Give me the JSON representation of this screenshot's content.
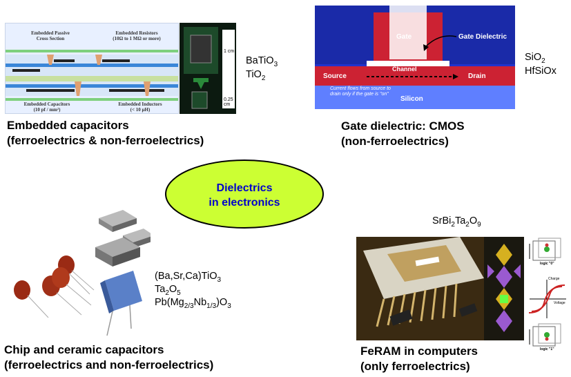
{
  "center": {
    "line1": "Dielectrics",
    "line2": "in electronics"
  },
  "embedded": {
    "caption1": "Embedded capacitors",
    "caption2": "(ferroelectrics & non-ferroelectrics)",
    "formula1_main": "BaTiO",
    "formula1_sub": "3",
    "formula2_main": "TiO",
    "formula2_sub": "2",
    "img_title1": "Embedded Passive",
    "img_title2": "Cross Section",
    "img_resistors1": "Embedded Resistors",
    "img_resistors2": "(10Ω to 1 MΩ or more)",
    "img_capacitors1": "Embedded Capacitors",
    "img_capacitors2": "(10 pf / mm²)",
    "img_inductors1": "Embedded Inductors",
    "img_inductors2": "(< 10 µH)",
    "scale1": "1 cm",
    "scale2": "0.25 cm"
  },
  "gate": {
    "caption1": "Gate dielectric: CMOS",
    "caption2": "(non-ferroelectrics)",
    "formula1_main": "SiO",
    "formula1_sub": "2",
    "formula2": "HfSiOx",
    "img_gate": "Gate",
    "img_gate_dielectric": "Gate Dielectric",
    "img_source": "Source",
    "img_channel": "Channel",
    "img_drain": "Drain",
    "img_current1": "Current flows from source to",
    "img_current2": "drain only if the gate is \"on\"",
    "img_silicon": "Silicon"
  },
  "chip": {
    "caption1": "Chip and ceramic capacitors",
    "caption2": "(ferroelectrics and non-ferroelectrics)",
    "f1": "(Ba,Sr,Ca)TiO",
    "f1_sub": "3",
    "f2_main": "Ta",
    "f2_sub1": "2",
    "f2_mid": "O",
    "f2_sub2": "5",
    "f3_a": "Pb(Mg",
    "f3_sub1": "2/3",
    "f3_b": "Nb",
    "f3_sub2": "1/3",
    "f3_c": ")O",
    "f3_sub3": "3"
  },
  "feram": {
    "caption1": "FeRAM in computers",
    "caption2": "(only ferroelectrics)",
    "formula_a": "SrBi",
    "formula_s1": "2",
    "formula_b": "Ta",
    "formula_s2": "2",
    "formula_c": "O",
    "formula_s3": "9",
    "logic0": "logic \"0\"",
    "logic1": "logic \"1\"",
    "charge": "Charge",
    "voltage": "Voltage"
  },
  "colors": {
    "ellipse_fill": "#ccff33",
    "ellipse_text": "#0000cc",
    "gate_bg": "#2233cc",
    "gate_red": "#cc2233"
  }
}
